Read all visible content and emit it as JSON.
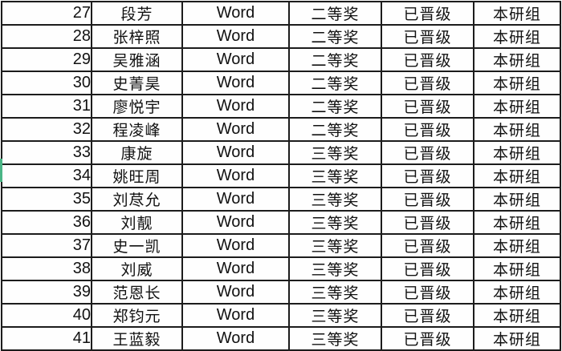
{
  "table": {
    "columns": [
      "row_number",
      "name",
      "software",
      "award",
      "status",
      "group"
    ],
    "rows": [
      {
        "num": "27",
        "name": "段芳",
        "software": "Word",
        "award": "二等奖",
        "status": "已晋级",
        "group": "本研组"
      },
      {
        "num": "28",
        "name": "张梓照",
        "software": "Word",
        "award": "二等奖",
        "status": "已晋级",
        "group": "本研组"
      },
      {
        "num": "29",
        "name": "吴雅涵",
        "software": "Word",
        "award": "二等奖",
        "status": "已晋级",
        "group": "本研组"
      },
      {
        "num": "30",
        "name": "史菁昊",
        "software": "Word",
        "award": "二等奖",
        "status": "已晋级",
        "group": "本研组"
      },
      {
        "num": "31",
        "name": "廖悦宇",
        "software": "Word",
        "award": "二等奖",
        "status": "已晋级",
        "group": "本研组"
      },
      {
        "num": "32",
        "name": "程凌峰",
        "software": "Word",
        "award": "二等奖",
        "status": "已晋级",
        "group": "本研组"
      },
      {
        "num": "33",
        "name": "康旋",
        "software": "Word",
        "award": "三等奖",
        "status": "已晋级",
        "group": "本研组"
      },
      {
        "num": "34",
        "name": "姚旺周",
        "software": "Word",
        "award": "三等奖",
        "status": "已晋级",
        "group": "本研组"
      },
      {
        "num": "35",
        "name": "刘荩允",
        "software": "Word",
        "award": "三等奖",
        "status": "已晋级",
        "group": "本研组"
      },
      {
        "num": "36",
        "name": "刘靓",
        "software": "Word",
        "award": "三等奖",
        "status": "已晋级",
        "group": "本研组"
      },
      {
        "num": "37",
        "name": "史一凯",
        "software": "Word",
        "award": "三等奖",
        "status": "已晋级",
        "group": "本研组"
      },
      {
        "num": "38",
        "name": "刘威",
        "software": "Word",
        "award": "三等奖",
        "status": "已晋级",
        "group": "本研组"
      },
      {
        "num": "39",
        "name": "范恩长",
        "software": "Word",
        "award": "三等奖",
        "status": "已晋级",
        "group": "本研组"
      },
      {
        "num": "40",
        "name": "郑钧元",
        "software": "Word",
        "award": "三等奖",
        "status": "已晋级",
        "group": "本研组"
      },
      {
        "num": "41",
        "name": "王蓝毅",
        "software": "Word",
        "award": "三等奖",
        "status": "已晋级",
        "group": "本研组"
      }
    ]
  },
  "selection_marker": {
    "marked_row_number": "34",
    "color": "#4ab586"
  },
  "colors": {
    "grid_line": "#1c1c1c",
    "cell_background": "#fefefe",
    "text": "#111111"
  }
}
